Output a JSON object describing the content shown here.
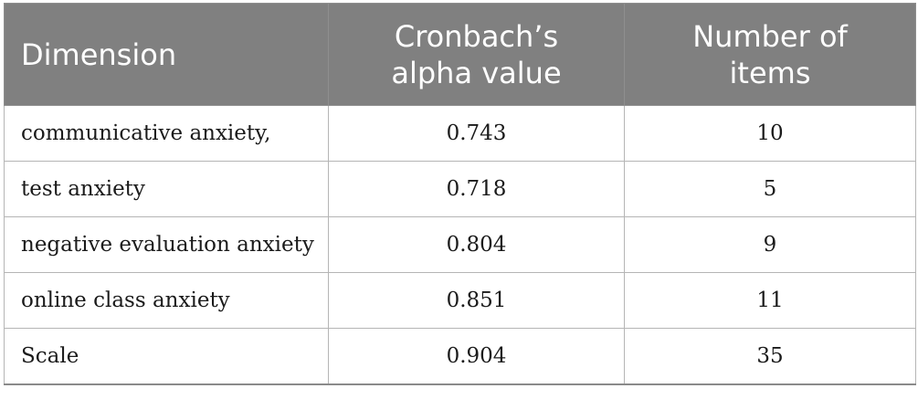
{
  "table": {
    "headers": [
      {
        "lines": [
          "Dimension"
        ]
      },
      {
        "lines": [
          "Cronbach’s",
          "alpha value"
        ]
      },
      {
        "lines": [
          "Number of",
          "items"
        ]
      }
    ],
    "rows": [
      {
        "dimension": "communicative anxiety,",
        "alpha": "0.743",
        "items": "10"
      },
      {
        "dimension": "test anxiety",
        "alpha": "0.718",
        "items": "5"
      },
      {
        "dimension": "negative evaluation anxiety",
        "alpha": "0.804",
        "items": "9"
      },
      {
        "dimension": "online class anxiety",
        "alpha": "0.851",
        "items": "11"
      },
      {
        "dimension": "Scale",
        "alpha": "0.904",
        "items": "35"
      }
    ]
  },
  "colors": {
    "header_background": "#808080",
    "header_text": "#ffffff",
    "border": "#b5b5b5"
  }
}
